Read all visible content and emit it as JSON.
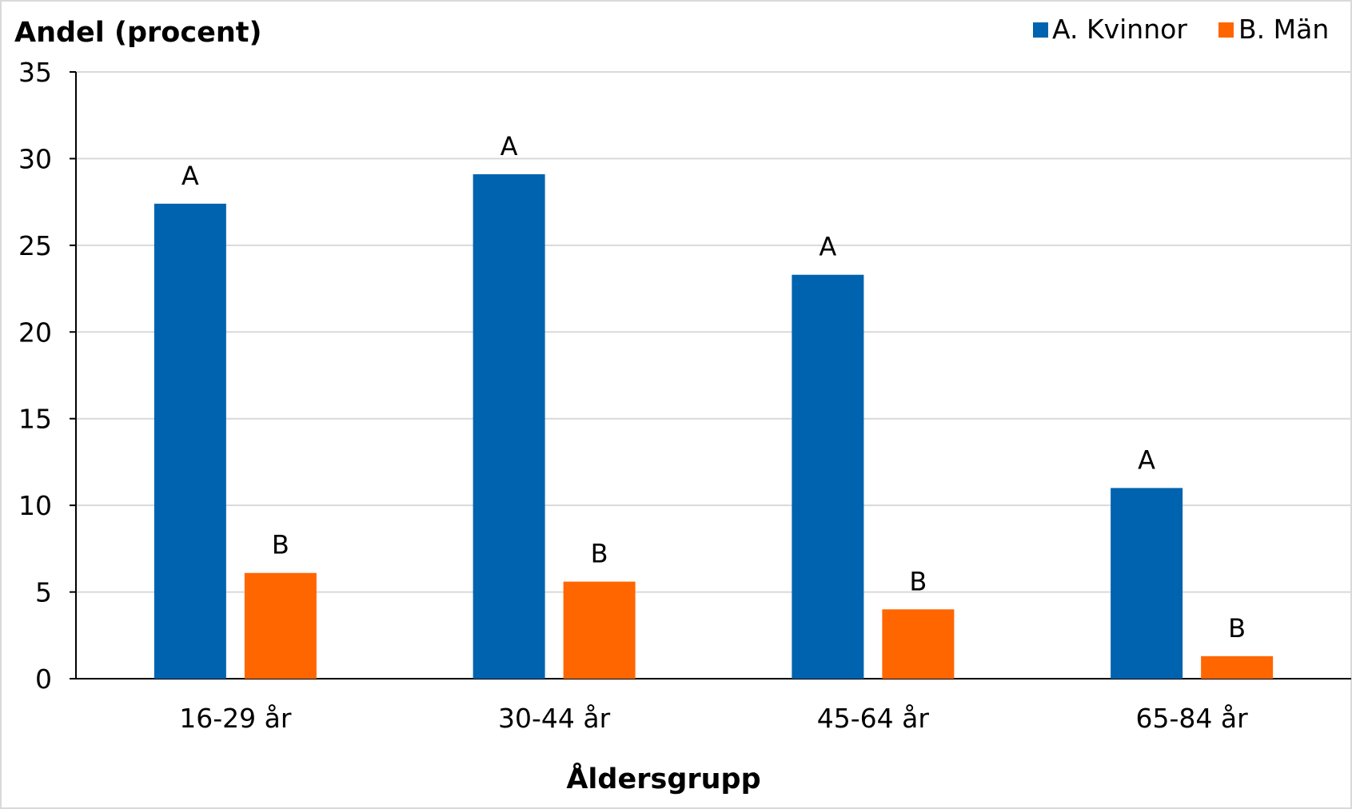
{
  "chart_data": {
    "type": "bar",
    "ylabel": "Andel (procent)",
    "xlabel": "Åldersgrupp",
    "categories": [
      "16-29 år",
      "30-44 år",
      "45-64 år",
      "65-84 år"
    ],
    "ylim": [
      0,
      35
    ],
    "yticks": [
      0,
      5,
      10,
      15,
      20,
      25,
      30,
      35
    ],
    "grid": true,
    "legend_position": "top-right",
    "series": [
      {
        "name": "A. Kvinnor",
        "color": "#0063AF",
        "values": [
          27.4,
          29.1,
          23.3,
          11.0
        ],
        "labels": [
          "A",
          "A",
          "A",
          "A"
        ]
      },
      {
        "name": "B. Män",
        "color": "#FF6600",
        "values": [
          6.1,
          5.6,
          4.0,
          1.3
        ],
        "labels": [
          "B",
          "B",
          "B",
          "B"
        ]
      }
    ]
  }
}
